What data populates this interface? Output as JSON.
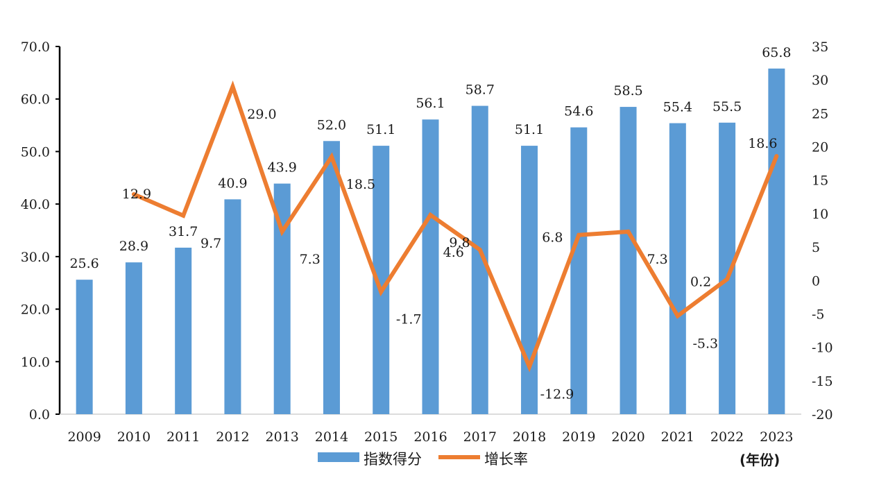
{
  "chart_data": {
    "type": "bar+line",
    "categories": [
      "2009",
      "2010",
      "2011",
      "2012",
      "2013",
      "2014",
      "2015",
      "2016",
      "2017",
      "2018",
      "2019",
      "2020",
      "2021",
      "2022",
      "2023"
    ],
    "series": [
      {
        "name": "指数得分",
        "type": "bar",
        "axis": "left",
        "color": "#5B9BD5",
        "values": [
          25.6,
          28.9,
          31.7,
          40.9,
          43.9,
          52.0,
          51.1,
          56.1,
          58.7,
          51.1,
          54.6,
          58.5,
          55.4,
          55.5,
          65.8
        ],
        "labels": [
          "25.6",
          "28.9",
          "31.7",
          "40.9",
          "43.9",
          "52.0",
          "51.1",
          "56.1",
          "58.7",
          "51.1",
          "54.6",
          "58.5",
          "55.4",
          "55.5",
          "65.8"
        ]
      },
      {
        "name": "增长率",
        "type": "line",
        "axis": "right",
        "color": "#ED7D31",
        "values": [
          null,
          12.9,
          9.7,
          29.0,
          7.3,
          18.5,
          -1.7,
          9.8,
          4.6,
          -12.9,
          6.8,
          7.3,
          -5.3,
          0.2,
          18.6
        ],
        "labels": [
          "",
          "12.9",
          "9.7",
          "29.0",
          "7.3",
          "18.5",
          "-1.7",
          "9.8",
          "4.6",
          "-12.9",
          "6.8",
          "7.3",
          "-5.3",
          "0.2",
          "18.6"
        ]
      }
    ],
    "y_left": {
      "min": 0,
      "max": 70,
      "step": 10,
      "ticks": [
        "0.0",
        "10.0",
        "20.0",
        "30.0",
        "40.0",
        "50.0",
        "60.0",
        "70.0"
      ]
    },
    "y_right": {
      "min": -20,
      "max": 35,
      "step": 5,
      "ticks": [
        "-20",
        "-15",
        "-10",
        "-5",
        "0",
        "5",
        "10",
        "15",
        "20",
        "25",
        "30",
        "35"
      ]
    },
    "legend": {
      "position": "bottom-center"
    },
    "unit_label": "(年份)",
    "title": "",
    "xlabel": "",
    "ylabel": ""
  }
}
